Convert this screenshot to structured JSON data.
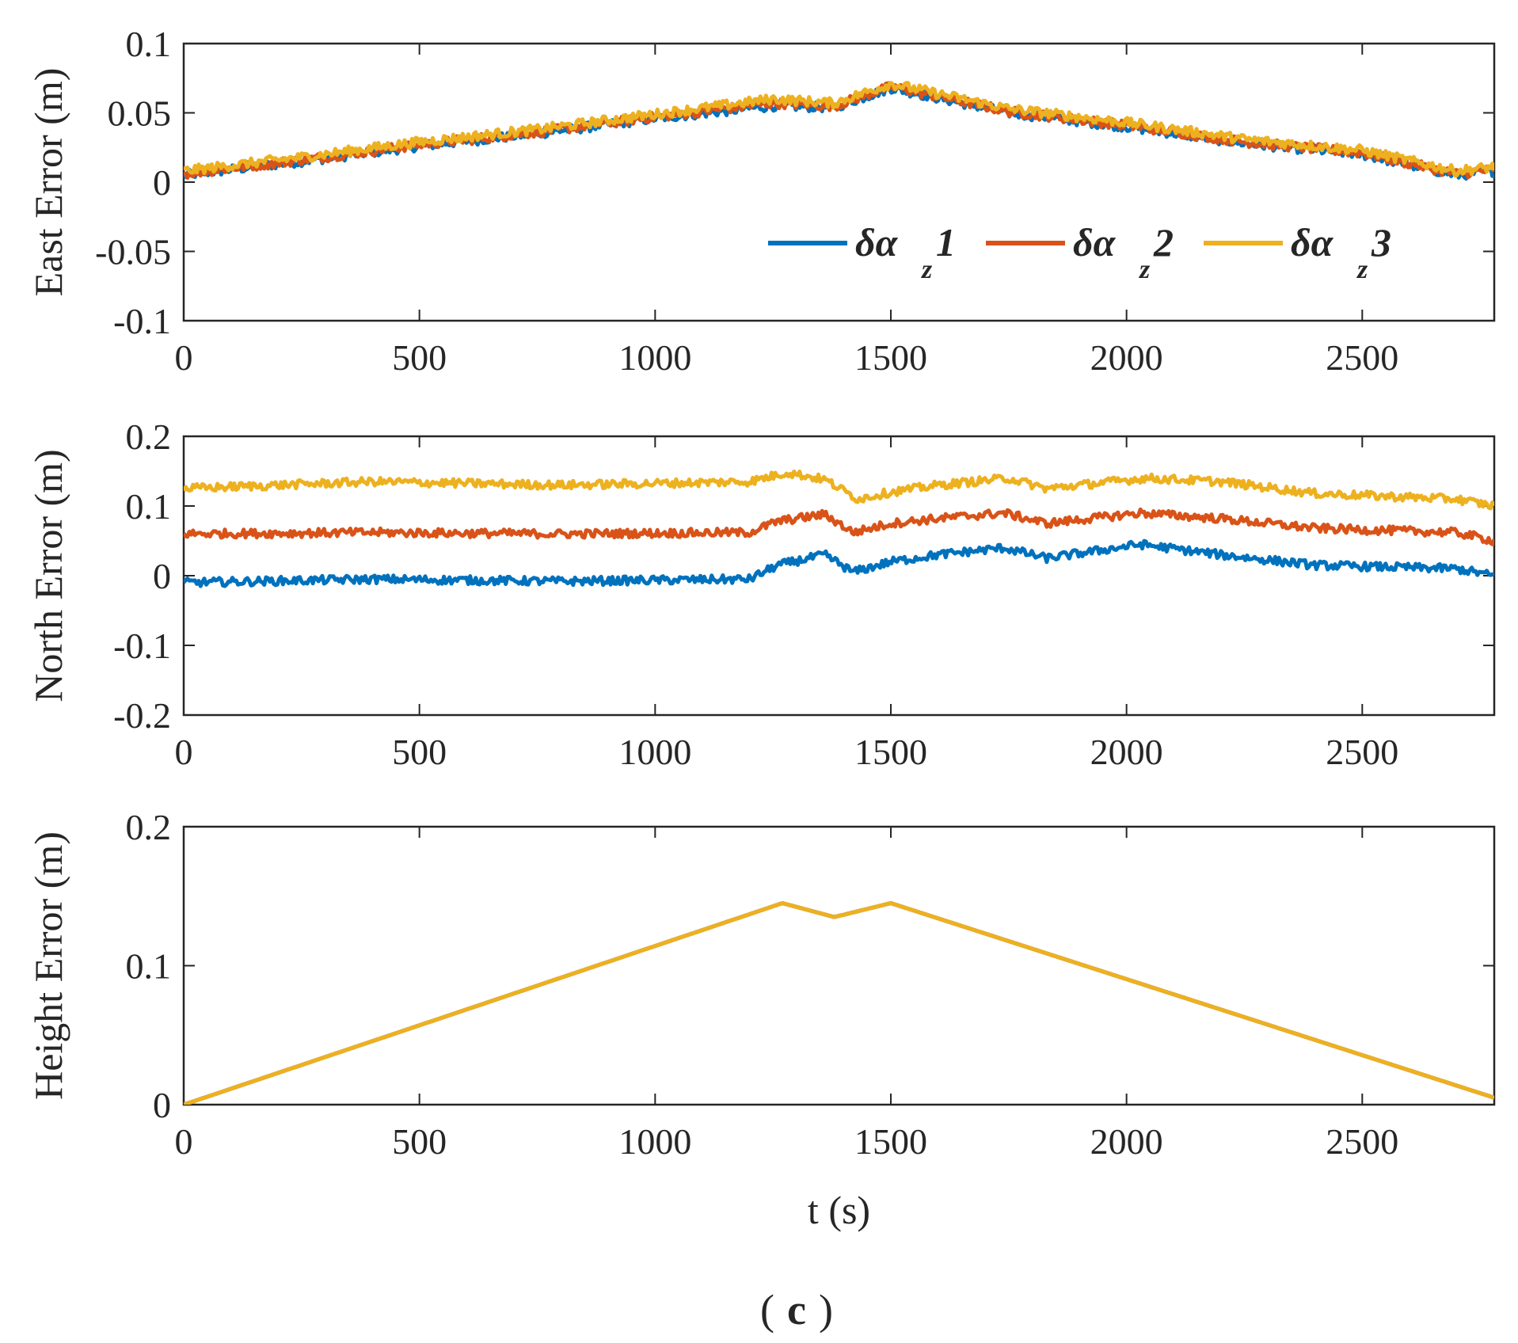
{
  "figure": {
    "caption_open": "(",
    "caption_letter": "c",
    "caption_close": ")"
  },
  "chart_data": [
    {
      "type": "line",
      "title": "",
      "xlabel": "",
      "ylabel": "East Error (m)",
      "xlim": [
        0,
        2780
      ],
      "ylim": [
        -0.1,
        0.1
      ],
      "xticks": [
        0,
        500,
        1000,
        1500,
        2000,
        2500
      ],
      "xtick_labels": [
        "0",
        "500",
        "1000",
        "1500",
        "2000",
        "2500"
      ],
      "yticks": [
        -0.1,
        -0.05,
        0,
        0.05,
        0.1
      ],
      "ytick_labels": [
        "-0.1",
        "-0.05",
        "0",
        "0.05",
        "0.1"
      ],
      "noise": 0.0035,
      "legend": {
        "placement": "lower-right",
        "entries": [
          {
            "symbol": "δα",
            "subscript": "z",
            "suffix": "1"
          },
          {
            "symbol": "δα",
            "subscript": "z",
            "suffix": "2"
          },
          {
            "symbol": "δα",
            "subscript": "z",
            "suffix": "3"
          }
        ]
      },
      "series": [
        {
          "name": "δα_z1",
          "color": "#0072BD",
          "x": [
            0,
            250,
            500,
            750,
            1000,
            1250,
            1380,
            1500,
            1750,
            2000,
            2250,
            2500,
            2700,
            2780
          ],
          "y": [
            0.005,
            0.015,
            0.026,
            0.035,
            0.046,
            0.055,
            0.054,
            0.068,
            0.05,
            0.04,
            0.028,
            0.02,
            0.005,
            0.008
          ]
        },
        {
          "name": "δα_z2",
          "color": "#D95319",
          "x": [
            0,
            250,
            500,
            750,
            1000,
            1250,
            1380,
            1500,
            1750,
            2000,
            2250,
            2500,
            2700,
            2780
          ],
          "y": [
            0.006,
            0.016,
            0.027,
            0.036,
            0.047,
            0.057,
            0.055,
            0.069,
            0.051,
            0.041,
            0.029,
            0.021,
            0.006,
            0.009
          ]
        },
        {
          "name": "δα_z3",
          "color": "#EDB120",
          "x": [
            0,
            250,
            500,
            750,
            1000,
            1250,
            1380,
            1500,
            1750,
            2000,
            2250,
            2500,
            2700,
            2780
          ],
          "y": [
            0.008,
            0.018,
            0.029,
            0.038,
            0.049,
            0.06,
            0.057,
            0.071,
            0.053,
            0.043,
            0.031,
            0.023,
            0.008,
            0.011
          ]
        }
      ]
    },
    {
      "type": "line",
      "title": "",
      "xlabel": "",
      "ylabel": "North Error (m)",
      "xlim": [
        0,
        2780
      ],
      "ylim": [
        -0.2,
        0.2
      ],
      "xticks": [
        0,
        500,
        1000,
        1500,
        2000,
        2500
      ],
      "xtick_labels": [
        "0",
        "500",
        "1000",
        "1500",
        "2000",
        "2500"
      ],
      "yticks": [
        -0.2,
        -0.1,
        0,
        0.1,
        0.2
      ],
      "ytick_labels": [
        "-0.2",
        "-0.1",
        "0",
        "0.1",
        "0.2"
      ],
      "noise": 0.006,
      "series": [
        {
          "name": "δα_z1",
          "color": "#0072BD",
          "x": [
            0,
            400,
            800,
            1200,
            1260,
            1360,
            1420,
            1500,
            1600,
            1740,
            1830,
            2030,
            2200,
            2400,
            2700,
            2780
          ],
          "y": [
            -0.01,
            -0.005,
            -0.008,
            -0.005,
            0.015,
            0.03,
            0.005,
            0.02,
            0.03,
            0.04,
            0.025,
            0.045,
            0.03,
            0.015,
            0.01,
            0.0
          ]
        },
        {
          "name": "δα_z2",
          "color": "#D95319",
          "x": [
            0,
            400,
            800,
            1200,
            1260,
            1360,
            1420,
            1500,
            1600,
            1740,
            1830,
            2030,
            2200,
            2400,
            2700,
            2780
          ],
          "y": [
            0.06,
            0.062,
            0.06,
            0.062,
            0.078,
            0.088,
            0.062,
            0.075,
            0.082,
            0.09,
            0.075,
            0.09,
            0.082,
            0.068,
            0.062,
            0.05
          ]
        },
        {
          "name": "δα_z3",
          "color": "#EDB120",
          "x": [
            0,
            400,
            800,
            1200,
            1280,
            1360,
            1430,
            1500,
            1600,
            1750,
            1830,
            2040,
            2200,
            2400,
            2700,
            2780
          ],
          "y": [
            0.125,
            0.135,
            0.13,
            0.135,
            0.148,
            0.138,
            0.11,
            0.12,
            0.13,
            0.14,
            0.125,
            0.14,
            0.135,
            0.118,
            0.11,
            0.1
          ]
        }
      ]
    },
    {
      "type": "line",
      "title": "",
      "xlabel": "t (s)",
      "ylabel": "Height Error (m)",
      "xlim": [
        0,
        2780
      ],
      "ylim": [
        0,
        0.2
      ],
      "xticks": [
        0,
        500,
        1000,
        1500,
        2000,
        2500
      ],
      "xtick_labels": [
        "0",
        "500",
        "1000",
        "1500",
        "2000",
        "2500"
      ],
      "yticks": [
        0,
        0.1,
        0.2
      ],
      "ytick_labels": [
        "0",
        "0.1",
        "0.2"
      ],
      "noise": 0,
      "series": [
        {
          "name": "δα_z1",
          "color": "#0072BD",
          "x": [
            0,
            1270,
            1380,
            1500,
            2780
          ],
          "y": [
            0,
            0.145,
            0.135,
            0.145,
            0.005
          ]
        },
        {
          "name": "δα_z2",
          "color": "#D95319",
          "x": [
            0,
            1270,
            1380,
            1500,
            2780
          ],
          "y": [
            0,
            0.145,
            0.135,
            0.145,
            0.005
          ]
        },
        {
          "name": "δα_z3",
          "color": "#EDB120",
          "x": [
            0,
            1270,
            1380,
            1500,
            2780
          ],
          "y": [
            0,
            0.145,
            0.135,
            0.145,
            0.005
          ]
        }
      ]
    }
  ]
}
